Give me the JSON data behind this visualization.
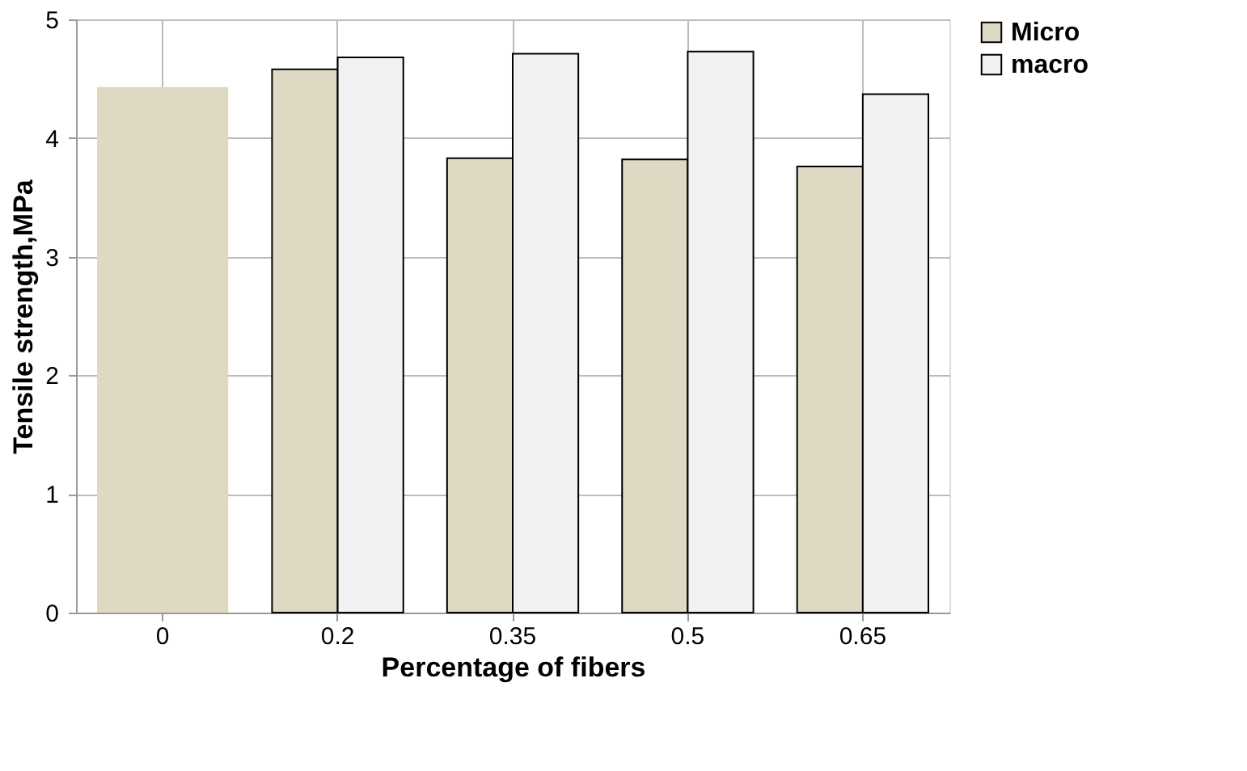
{
  "chart_data": {
    "type": "bar",
    "xlabel": "Percentage of fibers",
    "ylabel": "Tensile strength,MPa",
    "categories": [
      "0",
      "0.2",
      "0.35",
      "0.5",
      "0.65"
    ],
    "series": [
      {
        "color": "#ddd9c3",
        "values": [
          4.43,
          null,
          null,
          null,
          null
        ]
      },
      {
        "name": "Micro",
        "color": "#ddd9c3",
        "values": [
          null,
          4.58,
          3.83,
          3.82,
          3.76
        ]
      },
      {
        "name": "macro",
        "color": "#f2f2f2",
        "values": [
          null,
          4.68,
          4.71,
          4.73,
          4.37
        ]
      }
    ],
    "ylim": [
      0,
      5
    ],
    "yticks": [
      0,
      1,
      2,
      3,
      4,
      5
    ],
    "grid": true,
    "legend": "right"
  }
}
